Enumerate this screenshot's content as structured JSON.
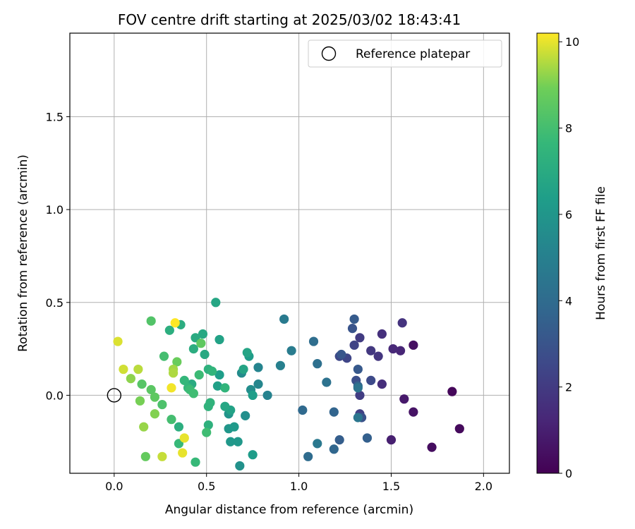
{
  "chart_data": {
    "type": "scatter",
    "title": "FOV centre drift starting at 2025/03/02 18:43:41",
    "xlabel": "Angular distance from reference (arcmin)",
    "ylabel": "Rotation from reference (arcmin)",
    "xlim": [
      -0.24,
      2.14
    ],
    "ylim": [
      -0.42,
      1.95
    ],
    "xticks": [
      0.0,
      0.5,
      1.0,
      1.5,
      2.0
    ],
    "yticks": [
      0.0,
      0.5,
      1.0,
      1.5
    ],
    "grid": true,
    "legend": {
      "position": "top-right",
      "entries": [
        "Reference platepar"
      ]
    },
    "reference_point": {
      "x": 0.0,
      "y": 0.0,
      "label": "Reference platepar"
    },
    "colorbar": {
      "label": "Hours from first FF file",
      "range": [
        0,
        10.2
      ],
      "ticks": [
        0,
        2,
        4,
        6,
        8,
        10
      ],
      "colormap": "viridis"
    },
    "series": [
      {
        "points": [
          {
            "x": 1.83,
            "y": 0.02,
            "c": 0.2
          },
          {
            "x": 1.87,
            "y": -0.18,
            "c": 0.3
          },
          {
            "x": 1.72,
            "y": -0.28,
            "c": 0.4
          },
          {
            "x": 1.62,
            "y": 0.27,
            "c": 0.5
          },
          {
            "x": 1.62,
            "y": -0.09,
            "c": 0.6
          },
          {
            "x": 1.57,
            "y": -0.02,
            "c": 0.8
          },
          {
            "x": 1.5,
            "y": -0.24,
            "c": 1.0
          },
          {
            "x": 1.55,
            "y": 0.24,
            "c": 1.2
          },
          {
            "x": 1.51,
            "y": 0.25,
            "c": 1.3
          },
          {
            "x": 1.45,
            "y": 0.06,
            "c": 1.5
          },
          {
            "x": 1.45,
            "y": 0.33,
            "c": 1.6
          },
          {
            "x": 1.56,
            "y": 0.39,
            "c": 1.7
          },
          {
            "x": 1.43,
            "y": 0.21,
            "c": 1.8
          },
          {
            "x": 1.39,
            "y": 0.24,
            "c": 1.9
          },
          {
            "x": 1.33,
            "y": 0.31,
            "c": 2.0
          },
          {
            "x": 1.33,
            "y": 0.0,
            "c": 2.1
          },
          {
            "x": 1.33,
            "y": -0.1,
            "c": 2.2
          },
          {
            "x": 1.3,
            "y": 0.27,
            "c": 2.3
          },
          {
            "x": 1.26,
            "y": 0.2,
            "c": 2.4
          },
          {
            "x": 1.22,
            "y": 0.21,
            "c": 2.5
          },
          {
            "x": 1.39,
            "y": 0.08,
            "c": 2.6
          },
          {
            "x": 1.31,
            "y": 0.08,
            "c": 2.8
          },
          {
            "x": 1.34,
            "y": -0.12,
            "c": 2.9
          },
          {
            "x": 1.29,
            "y": 0.36,
            "c": 3.0
          },
          {
            "x": 1.23,
            "y": 0.22,
            "c": 3.1
          },
          {
            "x": 1.32,
            "y": 0.14,
            "c": 3.2
          },
          {
            "x": 1.3,
            "y": 0.41,
            "c": 3.3
          },
          {
            "x": 1.22,
            "y": -0.24,
            "c": 3.4
          },
          {
            "x": 1.37,
            "y": -0.23,
            "c": 3.5
          },
          {
            "x": 1.32,
            "y": 0.05,
            "c": 3.6
          },
          {
            "x": 1.19,
            "y": -0.09,
            "c": 3.7
          },
          {
            "x": 1.19,
            "y": -0.29,
            "c": 3.8
          },
          {
            "x": 1.02,
            "y": -0.08,
            "c": 3.9
          },
          {
            "x": 1.05,
            "y": -0.33,
            "c": 4.0
          },
          {
            "x": 1.08,
            "y": 0.29,
            "c": 4.1
          },
          {
            "x": 1.1,
            "y": 0.17,
            "c": 4.2
          },
          {
            "x": 1.15,
            "y": 0.07,
            "c": 4.3
          },
          {
            "x": 1.32,
            "y": 0.04,
            "c": 4.4
          },
          {
            "x": 1.32,
            "y": -0.12,
            "c": 4.5
          },
          {
            "x": 1.1,
            "y": -0.26,
            "c": 4.6
          },
          {
            "x": 0.92,
            "y": 0.41,
            "c": 4.7
          },
          {
            "x": 0.96,
            "y": 0.24,
            "c": 4.8
          },
          {
            "x": 0.9,
            "y": 0.16,
            "c": 5.0
          },
          {
            "x": 0.83,
            "y": 0.0,
            "c": 5.1
          },
          {
            "x": 0.78,
            "y": 0.15,
            "c": 5.2
          },
          {
            "x": 0.78,
            "y": 0.06,
            "c": 5.3
          },
          {
            "x": 0.69,
            "y": 0.12,
            "c": 5.5
          },
          {
            "x": 0.74,
            "y": 0.03,
            "c": 5.6
          },
          {
            "x": 0.71,
            "y": -0.11,
            "c": 5.7
          },
          {
            "x": 0.68,
            "y": -0.38,
            "c": 5.8
          },
          {
            "x": 0.62,
            "y": -0.1,
            "c": 5.9
          },
          {
            "x": 0.62,
            "y": -0.18,
            "c": 6.0
          },
          {
            "x": 0.63,
            "y": -0.25,
            "c": 6.1
          },
          {
            "x": 0.67,
            "y": -0.25,
            "c": 6.1
          },
          {
            "x": 0.65,
            "y": -0.17,
            "c": 6.2
          },
          {
            "x": 0.75,
            "y": -0.32,
            "c": 6.3
          },
          {
            "x": 0.73,
            "y": 0.21,
            "c": 6.3
          },
          {
            "x": 0.75,
            "y": 0.0,
            "c": 6.4
          },
          {
            "x": 0.57,
            "y": 0.11,
            "c": 6.4
          },
          {
            "x": 0.56,
            "y": 0.05,
            "c": 6.5
          },
          {
            "x": 0.57,
            "y": 0.3,
            "c": 6.6
          },
          {
            "x": 0.63,
            "y": -0.08,
            "c": 6.6
          },
          {
            "x": 0.7,
            "y": 0.14,
            "c": 6.7
          },
          {
            "x": 0.72,
            "y": 0.23,
            "c": 6.7
          },
          {
            "x": 0.55,
            "y": 0.5,
            "c": 6.8
          },
          {
            "x": 0.6,
            "y": -0.06,
            "c": 6.8
          },
          {
            "x": 0.49,
            "y": 0.22,
            "c": 6.9
          },
          {
            "x": 0.48,
            "y": 0.33,
            "c": 6.9
          },
          {
            "x": 0.44,
            "y": 0.31,
            "c": 7.0
          },
          {
            "x": 0.42,
            "y": 0.06,
            "c": 7.0
          },
          {
            "x": 0.43,
            "y": 0.25,
            "c": 7.1
          },
          {
            "x": 0.36,
            "y": 0.38,
            "c": 7.1
          },
          {
            "x": 0.35,
            "y": -0.17,
            "c": 7.2
          },
          {
            "x": 0.3,
            "y": 0.35,
            "c": 7.2
          },
          {
            "x": 0.51,
            "y": 0.14,
            "c": 7.3
          },
          {
            "x": 0.51,
            "y": -0.16,
            "c": 7.3
          },
          {
            "x": 0.51,
            "y": -0.06,
            "c": 7.4
          },
          {
            "x": 0.52,
            "y": -0.04,
            "c": 7.4
          },
          {
            "x": 0.53,
            "y": 0.13,
            "c": 7.5
          },
          {
            "x": 0.6,
            "y": 0.04,
            "c": 7.5
          },
          {
            "x": 0.4,
            "y": 0.04,
            "c": 7.6
          },
          {
            "x": 0.38,
            "y": 0.08,
            "c": 7.6
          },
          {
            "x": 0.35,
            "y": -0.26,
            "c": 7.7
          },
          {
            "x": 0.44,
            "y": -0.36,
            "c": 7.7
          },
          {
            "x": 0.46,
            "y": 0.11,
            "c": 7.8
          },
          {
            "x": 0.41,
            "y": 0.03,
            "c": 7.8
          },
          {
            "x": 0.43,
            "y": 0.01,
            "c": 7.9
          },
          {
            "x": 0.5,
            "y": -0.2,
            "c": 7.9
          },
          {
            "x": 0.27,
            "y": 0.21,
            "c": 8.0
          },
          {
            "x": 0.31,
            "y": -0.13,
            "c": 8.0
          },
          {
            "x": 0.26,
            "y": -0.05,
            "c": 8.2
          },
          {
            "x": 0.2,
            "y": 0.4,
            "c": 8.3
          },
          {
            "x": 0.15,
            "y": 0.06,
            "c": 8.4
          },
          {
            "x": 0.2,
            "y": 0.03,
            "c": 8.5
          },
          {
            "x": 0.22,
            "y": -0.01,
            "c": 8.6
          },
          {
            "x": 0.47,
            "y": 0.28,
            "c": 8.6
          },
          {
            "x": 0.17,
            "y": -0.33,
            "c": 8.7
          },
          {
            "x": 0.34,
            "y": 0.18,
            "c": 8.8
          },
          {
            "x": 0.14,
            "y": -0.03,
            "c": 9.0
          },
          {
            "x": 0.22,
            "y": -0.1,
            "c": 9.1
          },
          {
            "x": 0.09,
            "y": 0.09,
            "c": 9.2
          },
          {
            "x": 0.16,
            "y": -0.17,
            "c": 9.3
          },
          {
            "x": 0.32,
            "y": 0.14,
            "c": 9.4
          },
          {
            "x": 0.32,
            "y": 0.12,
            "c": 9.5
          },
          {
            "x": 0.13,
            "y": 0.14,
            "c": 9.6
          },
          {
            "x": 0.26,
            "y": -0.33,
            "c": 9.7
          },
          {
            "x": 0.05,
            "y": 0.14,
            "c": 9.8
          },
          {
            "x": 0.02,
            "y": 0.29,
            "c": 9.9
          },
          {
            "x": 0.38,
            "y": -0.23,
            "c": 10.0
          },
          {
            "x": 0.37,
            "y": -0.31,
            "c": 10.0
          },
          {
            "x": 0.31,
            "y": 0.04,
            "c": 10.1
          },
          {
            "x": 0.33,
            "y": 0.39,
            "c": 10.2
          }
        ]
      }
    ]
  }
}
